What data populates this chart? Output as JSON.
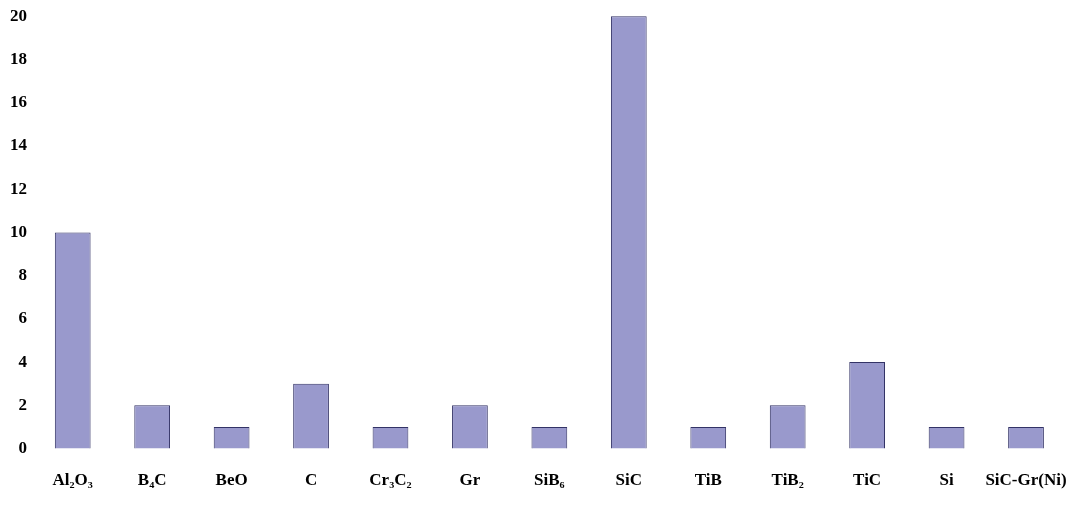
{
  "chart_data": {
    "type": "bar",
    "categories": [
      "Al₂O₃",
      "B₄C",
      "BeO",
      "C",
      "Cr₃C₂",
      "Gr",
      "SiB₆",
      "SiC",
      "TiB",
      "TiB₂",
      "TiC",
      "Si",
      "SiC-Gr(Ni)"
    ],
    "values": [
      10,
      2,
      1,
      3,
      1,
      2,
      1,
      20,
      1,
      2,
      4,
      1,
      1
    ],
    "color": "#9999cc",
    "ylim": [
      0,
      20
    ],
    "yticks": [
      0,
      2,
      4,
      6,
      8,
      10,
      12,
      14,
      16,
      18,
      20
    ],
    "grid": false,
    "legend": false
  }
}
